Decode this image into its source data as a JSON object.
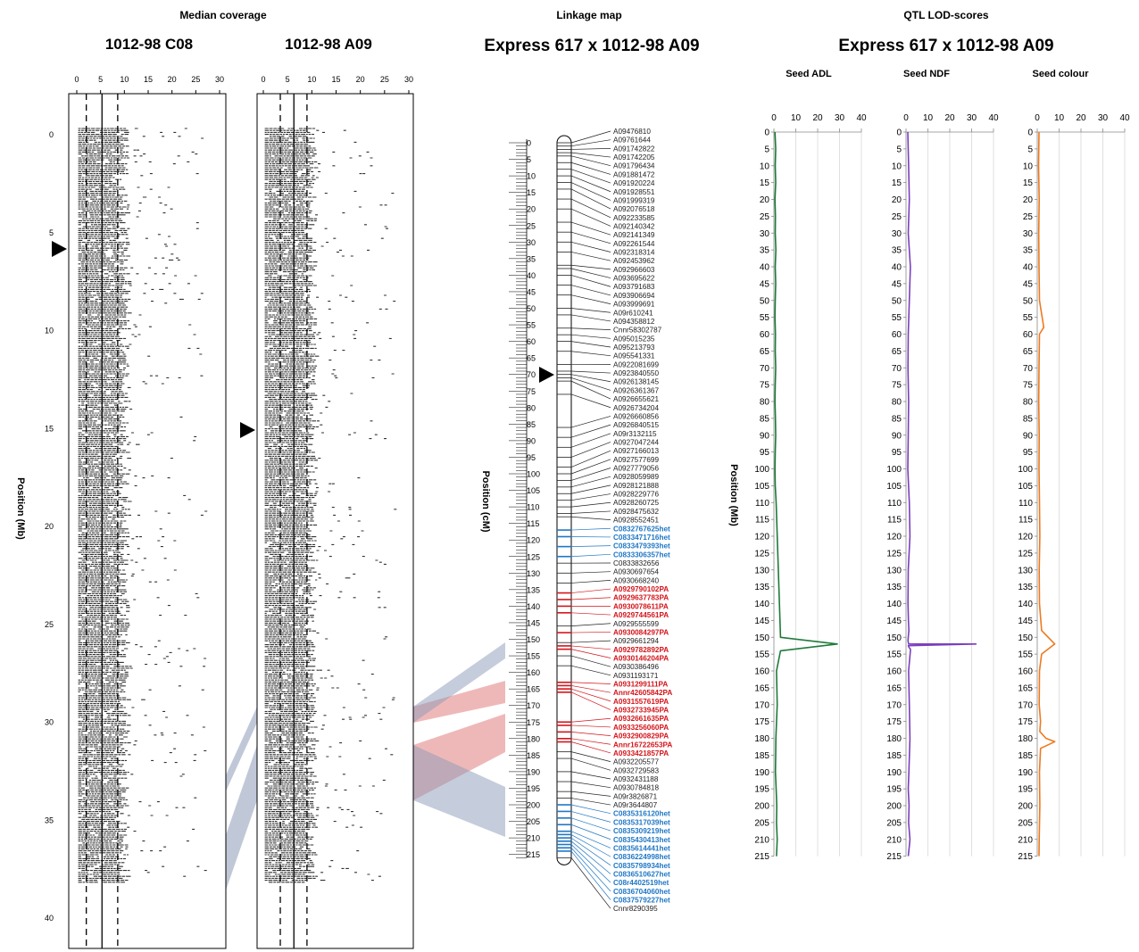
{
  "headers": {
    "median_coverage": "Median coverage",
    "linkage_map": "Linkage map",
    "qtl_lod": "QTL LOD-scores"
  },
  "coverage_panels": [
    {
      "title": "1012-98 C08",
      "x_ticks": [
        "0",
        "5",
        "10",
        "15",
        "20",
        "25",
        "30"
      ]
    },
    {
      "title": "1012-98 A09",
      "x_ticks": [
        "0",
        "5",
        "10",
        "15",
        "20",
        "25",
        "30"
      ]
    }
  ],
  "coverage_y_axis": {
    "label": "Position (Mb)",
    "ticks": [
      "0",
      "5",
      "10",
      "15",
      "20",
      "25",
      "30",
      "35",
      "40"
    ]
  },
  "linkage": {
    "title": "Express 617 x 1012-98 A09",
    "axis_label": "Position (cM)",
    "ticks": [
      "0",
      "5",
      "10",
      "15",
      "20",
      "25",
      "30",
      "35",
      "40",
      "45",
      "50",
      "55",
      "60",
      "65",
      "70",
      "75",
      "80",
      "85",
      "90",
      "95",
      "100",
      "105",
      "110",
      "115",
      "120",
      "125",
      "130",
      "135",
      "140",
      "145",
      "150",
      "155",
      "160",
      "165",
      "170",
      "175",
      "180",
      "185",
      "190",
      "195",
      "200",
      "205",
      "210",
      "215"
    ],
    "colors": {
      "black": "#222222",
      "blue": "#1f77c6",
      "red": "#d4141a"
    },
    "markers": [
      {
        "name": "A09476810",
        "pos": 0,
        "c": "black"
      },
      {
        "name": "A09761644",
        "pos": 1,
        "c": "black"
      },
      {
        "name": "A091742822",
        "pos": 2,
        "c": "black"
      },
      {
        "name": "A091742205",
        "pos": 3,
        "c": "black"
      },
      {
        "name": "A091796434",
        "pos": 4,
        "c": "black"
      },
      {
        "name": "A091881472",
        "pos": 6,
        "c": "black"
      },
      {
        "name": "A091920224",
        "pos": 8,
        "c": "black"
      },
      {
        "name": "A091928551",
        "pos": 10,
        "c": "black"
      },
      {
        "name": "A091999319",
        "pos": 12,
        "c": "black"
      },
      {
        "name": "A092076518",
        "pos": 14,
        "c": "black"
      },
      {
        "name": "A092233585",
        "pos": 17,
        "c": "black"
      },
      {
        "name": "A092140342",
        "pos": 20,
        "c": "black"
      },
      {
        "name": "A092141349",
        "pos": 24,
        "c": "black"
      },
      {
        "name": "A092261544",
        "pos": 27,
        "c": "black"
      },
      {
        "name": "A092318314",
        "pos": 30,
        "c": "black"
      },
      {
        "name": "A092453962",
        "pos": 33,
        "c": "black"
      },
      {
        "name": "A092966603",
        "pos": 37,
        "c": "black"
      },
      {
        "name": "A093695622",
        "pos": 38,
        "c": "black"
      },
      {
        "name": "A093791683",
        "pos": 40,
        "c": "black"
      },
      {
        "name": "A093906694",
        "pos": 43,
        "c": "black"
      },
      {
        "name": "A093999691",
        "pos": 46,
        "c": "black"
      },
      {
        "name": "A09r610241",
        "pos": 50,
        "c": "black"
      },
      {
        "name": "A094358812",
        "pos": 52,
        "c": "black"
      },
      {
        "name": "Cnnr58302787",
        "pos": 56,
        "c": "black"
      },
      {
        "name": "A095015235",
        "pos": 58,
        "c": "black"
      },
      {
        "name": "A095213793",
        "pos": 60,
        "c": "black"
      },
      {
        "name": "A095541331",
        "pos": 63,
        "c": "black"
      },
      {
        "name": "A0922081699",
        "pos": 67,
        "c": "black"
      },
      {
        "name": "A0923840550",
        "pos": 69,
        "c": "black"
      },
      {
        "name": "A0926138145",
        "pos": 70,
        "c": "black"
      },
      {
        "name": "A0926361367",
        "pos": 71,
        "c": "black"
      },
      {
        "name": "A0926655621",
        "pos": 72,
        "c": "black"
      },
      {
        "name": "A0926734204",
        "pos": 76,
        "c": "black"
      },
      {
        "name": "A0926660856",
        "pos": 86,
        "c": "black"
      },
      {
        "name": "A0926840515",
        "pos": 89,
        "c": "black"
      },
      {
        "name": "A09r3132115",
        "pos": 92,
        "c": "black"
      },
      {
        "name": "A0927047244",
        "pos": 95,
        "c": "black"
      },
      {
        "name": "A0927166013",
        "pos": 98,
        "c": "black"
      },
      {
        "name": "A0927577699",
        "pos": 100,
        "c": "black"
      },
      {
        "name": "A0927779056",
        "pos": 102,
        "c": "black"
      },
      {
        "name": "A0928059989",
        "pos": 104,
        "c": "black"
      },
      {
        "name": "A0928121888",
        "pos": 106,
        "c": "black"
      },
      {
        "name": "A0928229776",
        "pos": 108,
        "c": "black"
      },
      {
        "name": "A0928260725",
        "pos": 110,
        "c": "black"
      },
      {
        "name": "A0928475632",
        "pos": 112,
        "c": "black"
      },
      {
        "name": "A0928552451",
        "pos": 113,
        "c": "black"
      },
      {
        "name": "C0832767625het",
        "pos": 117,
        "c": "blue"
      },
      {
        "name": "C0833471716het",
        "pos": 119,
        "c": "blue"
      },
      {
        "name": "C0833479393het",
        "pos": 122,
        "c": "blue"
      },
      {
        "name": "C0833306357het",
        "pos": 125,
        "c": "blue"
      },
      {
        "name": "C0833832656",
        "pos": 127,
        "c": "black"
      },
      {
        "name": "A0930697654",
        "pos": 130,
        "c": "black"
      },
      {
        "name": "A0930668240",
        "pos": 133,
        "c": "black"
      },
      {
        "name": "A0929790102PA",
        "pos": 136,
        "c": "red"
      },
      {
        "name": "A0929637783PA",
        "pos": 138,
        "c": "red"
      },
      {
        "name": "A0930078611PA",
        "pos": 140,
        "c": "red"
      },
      {
        "name": "A0929744561PA",
        "pos": 142,
        "c": "red"
      },
      {
        "name": "A0929555599",
        "pos": 146,
        "c": "black"
      },
      {
        "name": "A0930084297PA",
        "pos": 148,
        "c": "red"
      },
      {
        "name": "A0929661294",
        "pos": 151,
        "c": "black"
      },
      {
        "name": "A0929782892PA",
        "pos": 152,
        "c": "red"
      },
      {
        "name": "A0930146204PA",
        "pos": 153,
        "c": "red"
      },
      {
        "name": "A0930386496",
        "pos": 155,
        "c": "black"
      },
      {
        "name": "A0931193171",
        "pos": 158,
        "c": "black"
      },
      {
        "name": "A0931299111PA",
        "pos": 163,
        "c": "red"
      },
      {
        "name": "Annr42605842PA",
        "pos": 164,
        "c": "red"
      },
      {
        "name": "A0931557619PA",
        "pos": 165,
        "c": "red"
      },
      {
        "name": "A0932733945PA",
        "pos": 166,
        "c": "red"
      },
      {
        "name": "A0932661635PA",
        "pos": 175,
        "c": "red"
      },
      {
        "name": "A0933256060PA",
        "pos": 176,
        "c": "red"
      },
      {
        "name": "A0932900829PA",
        "pos": 178,
        "c": "red"
      },
      {
        "name": "Annr16722653PA",
        "pos": 180,
        "c": "red"
      },
      {
        "name": "A0933421857PA",
        "pos": 181,
        "c": "red"
      },
      {
        "name": "A0932205577",
        "pos": 184,
        "c": "black"
      },
      {
        "name": "A0932729583",
        "pos": 186,
        "c": "black"
      },
      {
        "name": "A0932431188",
        "pos": 190,
        "c": "black"
      },
      {
        "name": "A0930784818",
        "pos": 193,
        "c": "black"
      },
      {
        "name": "A09r3826871",
        "pos": 196,
        "c": "black"
      },
      {
        "name": "A09r3644807",
        "pos": 198,
        "c": "black"
      },
      {
        "name": "C0835316120het",
        "pos": 200,
        "c": "blue"
      },
      {
        "name": "C0835317039het",
        "pos": 202,
        "c": "blue"
      },
      {
        "name": "C0835309219het",
        "pos": 204,
        "c": "blue"
      },
      {
        "name": "C0835430413het",
        "pos": 206,
        "c": "blue"
      },
      {
        "name": "C0835614441het",
        "pos": 208,
        "c": "blue"
      },
      {
        "name": "C0836224998het",
        "pos": 209,
        "c": "blue"
      },
      {
        "name": "C0835798934het",
        "pos": 210,
        "c": "blue"
      },
      {
        "name": "C0836510627het",
        "pos": 211,
        "c": "blue"
      },
      {
        "name": "C08r4402519het",
        "pos": 212,
        "c": "blue"
      },
      {
        "name": "C0836704060het",
        "pos": 213,
        "c": "blue"
      },
      {
        "name": "C0837579227het",
        "pos": 214,
        "c": "blue"
      },
      {
        "name": "Cnnr8290395",
        "pos": 216,
        "c": "black"
      }
    ]
  },
  "qtl": {
    "title": "Express 617 x 1012-98 A09",
    "y_axis_label": "Position (Mb)",
    "x_ticks": [
      "0",
      "10",
      "20",
      "30",
      "40"
    ],
    "y_ticks": [
      "0",
      "5",
      "10",
      "15",
      "20",
      "25",
      "30",
      "35",
      "40",
      "45",
      "50",
      "55",
      "60",
      "65",
      "70",
      "75",
      "80",
      "85",
      "90",
      "95",
      "100",
      "105",
      "110",
      "115",
      "120",
      "125",
      "130",
      "135",
      "140",
      "145",
      "150",
      "155",
      "160",
      "165",
      "170",
      "175",
      "180",
      "185",
      "190",
      "195",
      "200",
      "205",
      "210",
      "215"
    ],
    "panels": [
      {
        "title": "Seed ADL",
        "color": "#1f7a3a"
      },
      {
        "title": "Seed NDF",
        "color": "#7b3fbf"
      },
      {
        "title": "Seed colour",
        "color": "#ee7a1f"
      }
    ]
  },
  "chart_data": [
    {
      "type": "line",
      "title": "Seed ADL",
      "xlabel": "",
      "ylabel": "Position (Mb)",
      "xlim": [
        0,
        40
      ],
      "ylim": [
        0,
        215
      ],
      "series": [
        {
          "x": [
            0.5,
            0.8,
            0.6,
            0.8,
            0.5,
            0.7,
            0.6,
            0.9,
            0.6,
            0.8,
            0.6,
            0.5,
            0.7,
            0.6,
            0.8,
            0.6,
            0.5,
            0.7,
            0.8,
            0.6,
            0.5,
            0.6,
            1.0,
            3.0,
            29.0,
            3.0,
            1.2,
            1.5,
            0.9,
            0.8,
            0.7,
            1.0,
            1.3,
            1.2,
            1.5,
            1.2,
            0.9,
            1.0,
            1.3,
            0.8,
            1.0,
            1.2,
            0.9,
            0.8
          ],
          "y": [
            0,
            5,
            10,
            15,
            20,
            25,
            30,
            35,
            40,
            45,
            50,
            55,
            60,
            65,
            70,
            75,
            80,
            85,
            90,
            95,
            100,
            105,
            110,
            150,
            152,
            154,
            160,
            170,
            180,
            185,
            190,
            195,
            200,
            205,
            210,
            215,
            0,
            0,
            0,
            0,
            0,
            0,
            0,
            0
          ]
        }
      ]
    },
    {
      "type": "line",
      "title": "Seed NDF",
      "xlabel": "",
      "ylabel": "Position (Mb)",
      "xlim": [
        0,
        40
      ],
      "ylim": [
        0,
        215
      ],
      "series": [
        {
          "x": [
            0.8,
            1.2,
            1.5,
            1.0,
            2.0,
            1.5,
            1.0,
            0.9,
            1.2,
            1.0,
            0.8,
            1.5,
            1.8,
            1.0,
            0.9,
            1.1,
            1.3,
            1.0,
            0.9,
            1.2,
            1.0,
            1.4,
            2.0,
            32.0,
            2.0,
            1.2,
            1.5,
            1.8,
            1.3,
            1.0,
            1.4,
            1.2,
            1.8,
            1.5,
            1.0
          ],
          "y": [
            0,
            10,
            20,
            30,
            40,
            50,
            60,
            70,
            80,
            90,
            100,
            110,
            120,
            130,
            140,
            145,
            148,
            150,
            151,
            152,
            152.5,
            153,
            153.5,
            152,
            154,
            160,
            170,
            180,
            190,
            195,
            200,
            205,
            210,
            212,
            215
          ]
        }
      ]
    },
    {
      "type": "line",
      "title": "Seed colour",
      "xlabel": "",
      "ylabel": "Position (Mb)",
      "xlim": [
        0,
        40
      ],
      "ylim": [
        0,
        215
      ],
      "series": [
        {
          "x": [
            0.8,
            0.6,
            0.9,
            0.7,
            0.8,
            1.0,
            3.0,
            1.0,
            0.8,
            0.7,
            0.9,
            0.8,
            1.0,
            1.2,
            0.9,
            1.0,
            2.0,
            8.0,
            2.0,
            1.0,
            0.9,
            1.5,
            1.2,
            4.0,
            8.0,
            1.5,
            1.0,
            1.2,
            0.9,
            0.8
          ],
          "y": [
            0,
            10,
            20,
            30,
            40,
            50,
            58,
            60,
            70,
            80,
            90,
            100,
            110,
            120,
            130,
            140,
            148,
            152,
            155,
            160,
            170,
            175,
            178,
            180,
            181,
            183,
            190,
            200,
            210,
            215
          ]
        }
      ]
    }
  ]
}
